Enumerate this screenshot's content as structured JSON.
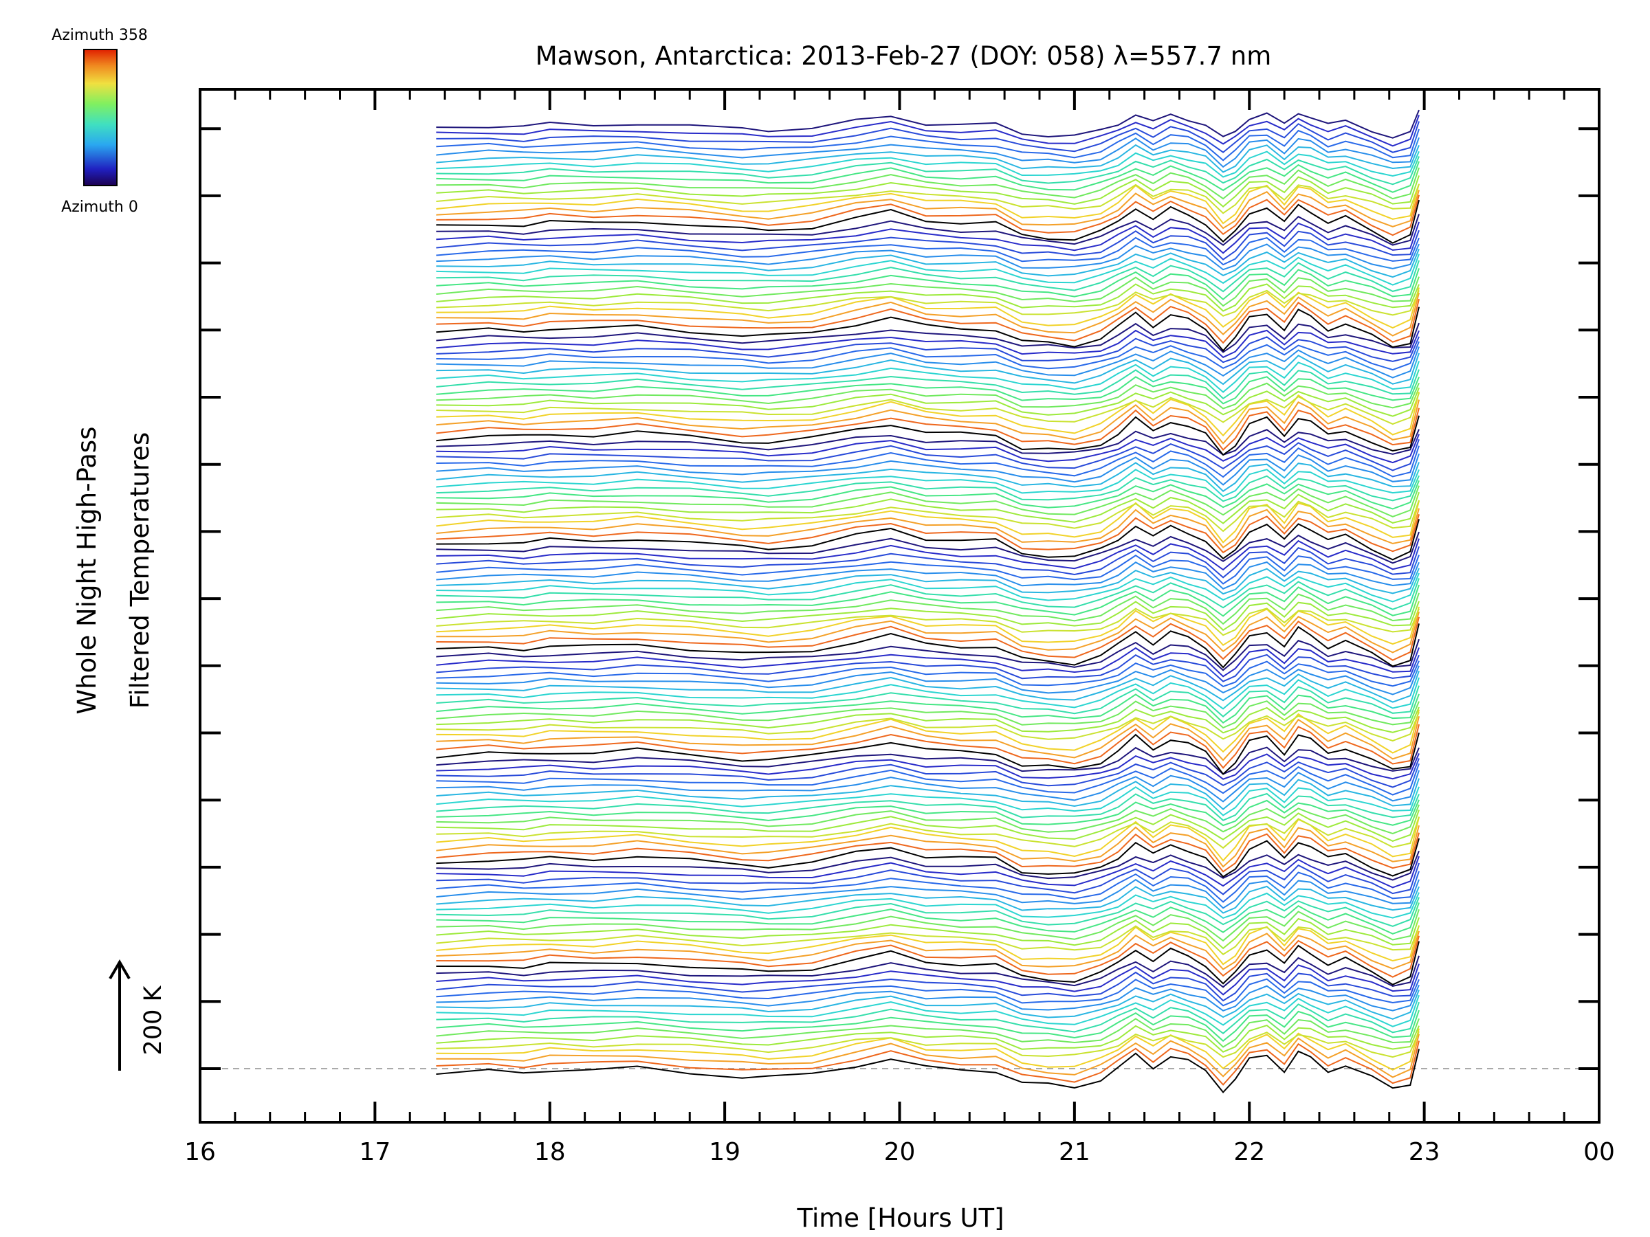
{
  "chart_data": {
    "type": "line",
    "title": "Mawson, Antarctica: 2013-Feb-27 (DOY: 058) λ=557.7 nm",
    "xlabel": "Time [Hours UT]",
    "ylabel_line1": "Whole Night High-Pass",
    "ylabel_line2": "Filtered Temperatures",
    "xlim": [
      16,
      24
    ],
    "x_tick_labels": [
      "16",
      "17",
      "18",
      "19",
      "20",
      "21",
      "22",
      "23",
      "00"
    ],
    "colorbar": {
      "max_label": "Azimuth 358",
      "min_label": "Azimuth 0",
      "azimuth_min": 0,
      "azimuth_max": 358
    },
    "scale_bar_label": "200 K",
    "baseline": "dashed",
    "grid": false,
    "trace_count": 144,
    "trace_stack_rows": 14.1,
    "x": [
      17.35,
      17.65,
      17.85,
      18.0,
      18.25,
      18.5,
      18.8,
      19.1,
      19.25,
      19.5,
      19.75,
      19.95,
      20.15,
      20.35,
      20.55,
      20.7,
      20.85,
      21.0,
      21.15,
      21.25,
      21.35,
      21.45,
      21.55,
      21.65,
      21.75,
      21.85,
      21.92,
      22.0,
      22.1,
      22.2,
      22.28,
      22.35,
      22.45,
      22.55,
      22.7,
      22.82,
      22.92,
      22.97
    ],
    "template_shape": [
      0.0,
      0.15,
      0.1,
      0.25,
      0.2,
      0.35,
      0.1,
      -0.15,
      -0.2,
      0.0,
      0.5,
      0.85,
      0.35,
      0.25,
      0.2,
      -0.5,
      -0.6,
      -0.7,
      -0.3,
      0.3,
      1.1,
      0.4,
      1.0,
      0.7,
      0.2,
      -0.9,
      -0.3,
      0.8,
      1.1,
      0.2,
      1.2,
      0.9,
      0.2,
      0.5,
      -0.2,
      -0.8,
      -0.5,
      1.4
    ]
  }
}
